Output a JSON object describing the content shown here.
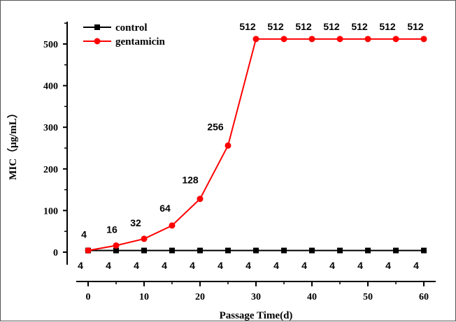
{
  "chart_data": {
    "type": "line",
    "xlabel": "Passage Time(d)",
    "ylabel": "MIC（μg/mL）",
    "x": [
      0,
      5,
      10,
      15,
      20,
      25,
      30,
      35,
      40,
      45,
      50,
      55,
      60
    ],
    "xlim": [
      0,
      60
    ],
    "ylim": [
      0,
      550
    ],
    "x_ticks": [
      0,
      10,
      20,
      30,
      40,
      50,
      60
    ],
    "y_ticks": [
      0,
      100,
      200,
      300,
      400,
      500
    ],
    "grid": false,
    "legend_position": "top-left",
    "series": [
      {
        "name": "control",
        "color": "#000000",
        "marker": "square",
        "values": [
          4,
          4,
          4,
          4,
          4,
          4,
          4,
          4,
          4,
          4,
          4,
          4,
          4
        ],
        "labels": [
          "4",
          "4",
          "4",
          "4",
          "4",
          "4",
          "4",
          "4",
          "4",
          "4",
          "4",
          "4",
          "4"
        ]
      },
      {
        "name": "gentamicin",
        "color": "#ff0000",
        "marker": "circle",
        "values": [
          4,
          16,
          32,
          64,
          128,
          256,
          512,
          512,
          512,
          512,
          512,
          512,
          512
        ],
        "labels": [
          "4",
          "16",
          "32",
          "64",
          "128",
          "256",
          "512",
          "512",
          "512",
          "512",
          "512",
          "512",
          "512"
        ]
      }
    ]
  }
}
